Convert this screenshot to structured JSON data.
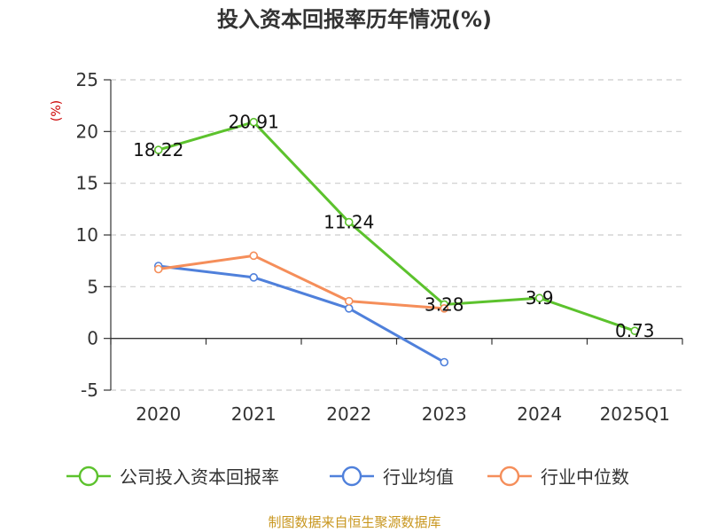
{
  "chart_data": {
    "type": "line",
    "title": "投入资本回报率历年情况(%)",
    "ylabel": "(%)",
    "ylim": [
      -5,
      25
    ],
    "yticks": [
      25,
      20,
      15,
      10,
      5,
      0,
      -5
    ],
    "categories": [
      "2020",
      "2021",
      "2022",
      "2023",
      "2024",
      "2025Q1"
    ],
    "grid": true,
    "legend_position": "bottom",
    "series": [
      {
        "name": "公司投入资本回报率",
        "color": "#5cc22d",
        "values": [
          18.22,
          20.91,
          11.24,
          3.28,
          3.9,
          0.73
        ],
        "labels": [
          "18.22",
          "20.91",
          "11.24",
          "3.28",
          "3.9",
          "0.73"
        ]
      },
      {
        "name": "行业均值",
        "color": "#4f80db",
        "values": [
          7.0,
          5.9,
          2.9,
          -2.3,
          null,
          null
        ]
      },
      {
        "name": "行业中位数",
        "color": "#f58e5a",
        "values": [
          6.7,
          8.0,
          3.6,
          2.9,
          null,
          null
        ]
      }
    ]
  },
  "footer": {
    "source": "制图数据来自恒生聚源数据库"
  }
}
